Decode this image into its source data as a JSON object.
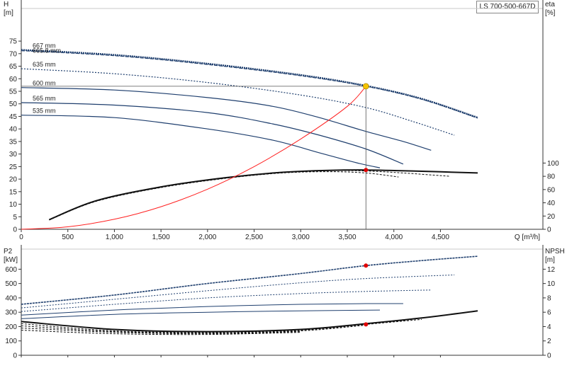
{
  "title": "LS 700-500-667D",
  "chart_data": [
    {
      "type": "line",
      "name": "pump-curve",
      "xlabel": "Q [m³/h]",
      "ylabel_left": "H [m]",
      "ylabel_left_name": "H",
      "ylabel_left_unit": "[m]",
      "ylabel_right_name": "eta",
      "ylabel_right_unit": "[%]",
      "xlim": [
        0,
        5600
      ],
      "ylim_left": [
        0,
        88
      ],
      "ylim_right": [
        0,
        100
      ],
      "x_ticks": [
        "0",
        "500",
        "1,000",
        "1,500",
        "2,000",
        "2,500",
        "3,000",
        "3,500",
        "4,000",
        "4,500"
      ],
      "x_tick_values": [
        0,
        500,
        1000,
        1500,
        2000,
        2500,
        3000,
        3500,
        4000,
        4500
      ],
      "y_left_ticks": [
        0,
        5,
        10,
        15,
        20,
        25,
        30,
        35,
        40,
        45,
        50,
        55,
        60,
        65,
        70,
        75
      ],
      "y_right_ticks": [
        0,
        20,
        40,
        60,
        80,
        100
      ],
      "grid": false,
      "impeller_labels": [
        "667 mm",
        "665.8 mm",
        "635 mm",
        "600 mm",
        "565 mm",
        "535 mm"
      ],
      "head_curves": [
        {
          "label": "667 mm",
          "style": "dotted-bold",
          "x": [
            0,
            1000,
            2000,
            3000,
            3700,
            4300,
            4900
          ],
          "y": [
            71.5,
            69.5,
            66,
            61.5,
            57.2,
            52,
            44.5
          ]
        },
        {
          "label": "665.8 mm",
          "style": "dashed",
          "x": [
            0,
            1000,
            2000,
            3000,
            3700,
            4300,
            4900
          ],
          "y": [
            71.2,
            69.2,
            65.7,
            61.2,
            57.0,
            51.8,
            44.3
          ]
        },
        {
          "label": "635 mm",
          "style": "dotted-dashed",
          "x": [
            0,
            1000,
            2000,
            3000,
            3700,
            4200,
            4650
          ],
          "y": [
            64,
            62,
            58.5,
            53.5,
            48.5,
            43,
            37.5
          ]
        },
        {
          "label": "600 mm",
          "style": "solid-dashed",
          "x": [
            0,
            1000,
            2000,
            2700,
            3200,
            3700,
            4100,
            4400
          ],
          "y": [
            56.5,
            55.5,
            52.5,
            49,
            44.5,
            39,
            35,
            31.5
          ]
        },
        {
          "label": "565 mm",
          "style": "solid-dashed",
          "x": [
            0,
            1000,
            2000,
            2700,
            3200,
            3700,
            4100
          ],
          "y": [
            50.5,
            49.5,
            46.5,
            42,
            37.5,
            32,
            26
          ]
        },
        {
          "label": "535 mm",
          "style": "solid",
          "x": [
            0,
            1000,
            2000,
            2700,
            3200,
            3600,
            3850
          ],
          "y": [
            45.5,
            44.5,
            40,
            35.5,
            30.5,
            26.5,
            24.5
          ]
        }
      ],
      "efficiency_curves": [
        {
          "x": [
            300,
            800,
            1500,
            2200,
            2800,
            3300,
            3700,
            4200,
            4900
          ],
          "y": [
            14.5,
            43,
            64,
            78,
            86,
            89,
            89.5,
            88,
            85
          ]
        },
        {
          "x": [
            300,
            800,
            1500,
            2200,
            2800,
            3300,
            3700,
            4100,
            4600
          ],
          "y": [
            14,
            42.5,
            63.5,
            77.5,
            85.5,
            88.5,
            88,
            85,
            80
          ]
        },
        {
          "x": [
            300,
            800,
            1500,
            2200,
            2800,
            3300,
            3700,
            4050
          ],
          "y": [
            14,
            42,
            63,
            77,
            85,
            87,
            85,
            79
          ]
        }
      ],
      "system_curve": {
        "x": [
          0,
          500,
          1000,
          1500,
          2000,
          2500,
          3000,
          3500,
          3700
        ],
        "y": [
          0,
          1,
          4,
          9,
          16,
          25,
          36,
          49,
          57
        ]
      },
      "duty_point": {
        "x": 3700,
        "y": 57
      },
      "eta_point": {
        "x": 3700,
        "eta": 89.5
      }
    },
    {
      "type": "line",
      "name": "power-npsh-curve",
      "ylabel_left_name": "P2",
      "ylabel_left_unit": "[kW]",
      "ylabel_right_name": "NPSH",
      "ylabel_right_unit": "[m]",
      "xlim": [
        0,
        5600
      ],
      "ylim_left": [
        0,
        740
      ],
      "ylim_right": [
        0,
        14.8
      ],
      "y_left_ticks": [
        0,
        100,
        200,
        300,
        400,
        500,
        600
      ],
      "y_right_ticks": [
        0,
        2,
        4,
        6,
        8,
        10,
        12
      ],
      "power_curves": [
        {
          "x": [
            0,
            1000,
            2000,
            3000,
            3700,
            4300,
            4900
          ],
          "y": [
            355,
            420,
            500,
            570,
            625,
            660,
            690
          ]
        },
        {
          "x": [
            0,
            1000,
            2000,
            3000,
            3700,
            4650
          ],
          "y": [
            330,
            390,
            450,
            505,
            535,
            560
          ]
        },
        {
          "x": [
            0,
            1000,
            2000,
            3000,
            3700,
            4400
          ],
          "y": [
            305,
            355,
            400,
            430,
            445,
            455
          ]
        },
        {
          "x": [
            0,
            1000,
            2000,
            3000,
            3700,
            4100
          ],
          "y": [
            280,
            315,
            340,
            355,
            360,
            360
          ]
        },
        {
          "x": [
            0,
            1000,
            2000,
            3000,
            3850
          ],
          "y": [
            255,
            285,
            300,
            310,
            315
          ]
        }
      ],
      "npsh_curves": [
        {
          "x": [
            0,
            1000,
            2000,
            3000,
            3700,
            4300,
            4900
          ],
          "y": [
            4.7,
            3.6,
            3.3,
            3.6,
            4.4,
            5.2,
            6.2
          ]
        },
        {
          "x": [
            0,
            1000,
            2000,
            3000,
            3700,
            4300
          ],
          "y": [
            4.4,
            3.4,
            3.2,
            3.5,
            4.3,
            5.0
          ]
        },
        {
          "x": [
            0,
            1000,
            2000,
            3000,
            3700
          ],
          "y": [
            4.1,
            3.3,
            3.1,
            3.4,
            4.2
          ]
        },
        {
          "x": [
            0,
            1000,
            2000,
            3000
          ],
          "y": [
            3.8,
            3.2,
            3.0,
            3.3
          ]
        },
        {
          "x": [
            0,
            1000,
            2000,
            3000
          ],
          "y": [
            3.5,
            3.0,
            2.9,
            3.2
          ]
        }
      ],
      "duty_power_point": {
        "x": 3700,
        "y": 625
      },
      "duty_npsh_point": {
        "x": 3700,
        "y": 4.3
      }
    }
  ],
  "colors": {
    "head": "#1f3f6e",
    "eff": "#111111",
    "system": "#ff2020",
    "duty": "#f5c400",
    "marker": "#e00000",
    "axis": "#333333"
  }
}
